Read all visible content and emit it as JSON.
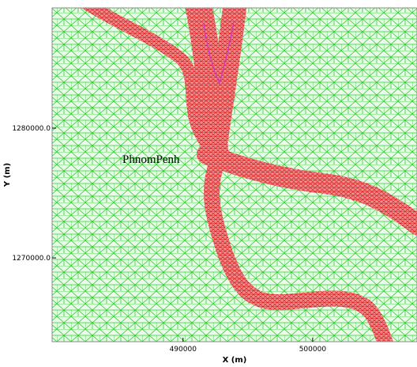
{
  "map": {
    "xlabel": "X (m)",
    "ylabel": "Y (m)",
    "xlim": [
      479900,
      508050
    ],
    "ylim": [
      1263540,
      1289270
    ],
    "xticks": [
      490000,
      500000
    ],
    "yticks": [
      {
        "value": 1270000,
        "label": "1270000.0"
      },
      {
        "value": 1280000,
        "label": "1280000.0"
      }
    ],
    "place_label": "PhnomPenh"
  }
}
